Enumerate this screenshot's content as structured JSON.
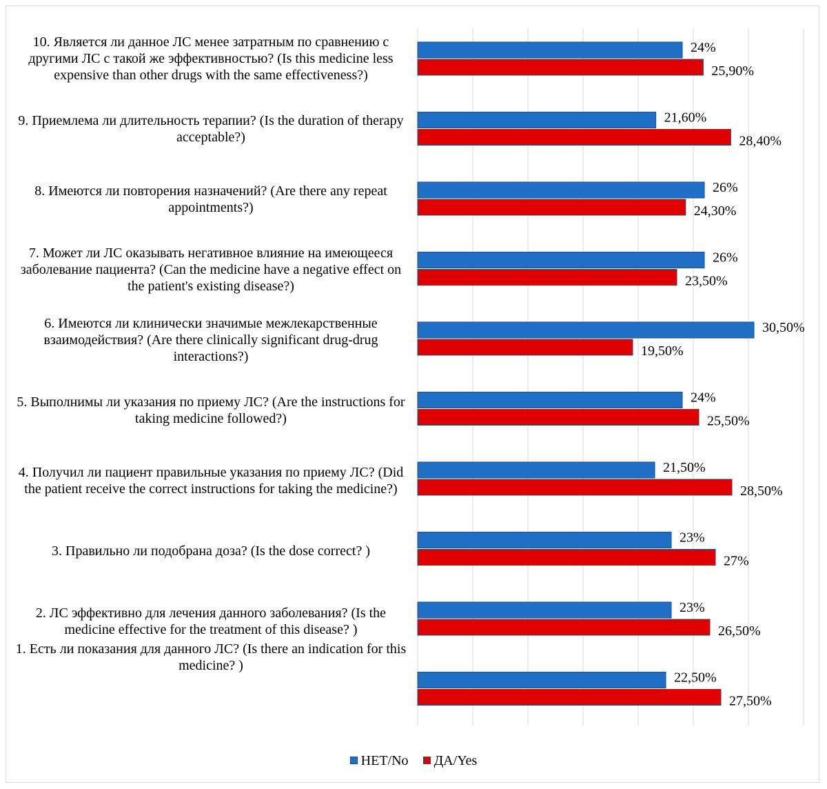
{
  "chart_data": {
    "type": "bar",
    "orientation": "horizontal",
    "title": "",
    "xlabel": "",
    "ylabel": "",
    "xlim": [
      0,
      35
    ],
    "grid": "vertical",
    "legend_position": "bottom",
    "categories": [
      "10. Является ли данное ЛС менее затратным по сравнению с другими ЛС с такой же эффективностью? (Is this medicine less expensive than other drugs with the same effectiveness?)",
      "9. Приемлема ли длительность терапии? (Is the duration of therapy acceptable?)",
      "8. Имеются ли повторения назначений? (Are there any repeat appointments?)",
      "7. Может ли ЛС оказывать негативное влияние на имеющееся заболевание пациента? (Can the medicine have a negative effect on the patient's existing disease?)",
      "6. Имеются ли клинически значимые межлекарственные взаимодействия? (Are there clinically significant drug-drug interactions?)",
      "5. Выполнимы ли указания по приему ЛС? (Are the instructions for taking medicine followed?)",
      "4. Получил ли пациент правильные указания по приему ЛС? (Did the patient receive the correct instructions for taking the medicine?)",
      "3. Правильно ли подобрана доза? (Is the dose correct? )",
      "2. ЛС эффективно для лечения данного заболевания? (Is the medicine effective for the treatment of this disease? )",
      "1. Есть ли показания для данного ЛС? (Is there an indication for this medicine? )"
    ],
    "series": [
      {
        "name": "НЕТ/No",
        "color": "#1f6fc6",
        "values": [
          24,
          21.6,
          26,
          26,
          30.5,
          24,
          21.5,
          23,
          23,
          22.5
        ],
        "labels": [
          "24%",
          "21,60%",
          "26%",
          "26%",
          "30,50%",
          "24%",
          "21,50%",
          "23%",
          "23%",
          "22,50%"
        ]
      },
      {
        "name": "ДА/Yes",
        "color": "#e00000",
        "values": [
          25.9,
          28.4,
          24.3,
          23.5,
          19.5,
          25.5,
          28.5,
          27,
          26.5,
          27.5
        ],
        "labels": [
          "25,90%",
          "28,40%",
          "24,30%",
          "23,50%",
          "19,50%",
          "25,50%",
          "28,50%",
          "27%",
          "26,50%",
          "27,50%"
        ]
      }
    ]
  },
  "legend": {
    "no_label": "НЕТ/No",
    "yes_label": "ДА/Yes"
  }
}
